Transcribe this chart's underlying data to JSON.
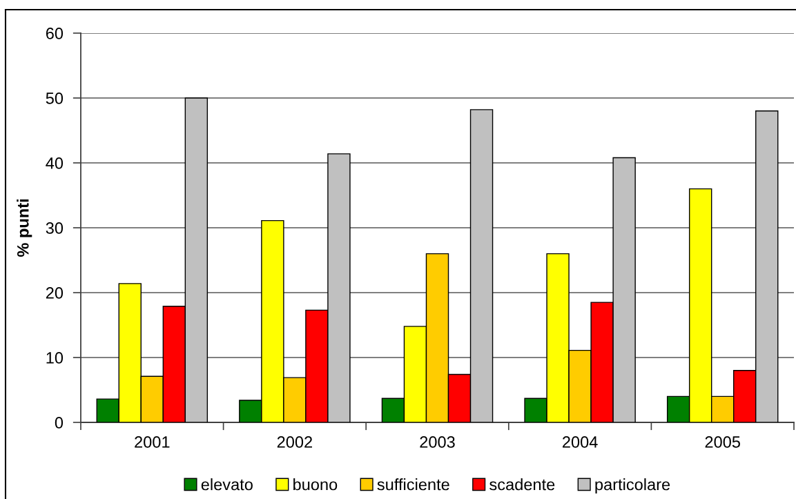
{
  "chart_data": {
    "type": "bar",
    "ylabel": "% punti",
    "categories": [
      "2001",
      "2002",
      "2003",
      "2004",
      "2005"
    ],
    "series": [
      {
        "name": "elevato",
        "color": "#008000",
        "values": [
          3.6,
          3.4,
          3.7,
          3.7,
          4.0
        ]
      },
      {
        "name": "buono",
        "color": "#ffff00",
        "values": [
          21.4,
          31.1,
          14.8,
          26.0,
          36.0
        ]
      },
      {
        "name": "sufficiente",
        "color": "#ffcc00",
        "values": [
          7.1,
          6.9,
          26.0,
          11.1,
          4.0
        ]
      },
      {
        "name": "scadente",
        "color": "#ff0000",
        "values": [
          17.9,
          17.3,
          7.4,
          18.5,
          8.0
        ]
      },
      {
        "name": "particolare",
        "color": "#c0c0c0",
        "values": [
          50.0,
          41.4,
          48.2,
          40.8,
          48.0
        ]
      }
    ],
    "ylim": [
      0,
      60
    ],
    "yticks": [
      0,
      10,
      20,
      30,
      40,
      50,
      60
    ],
    "grid": "y",
    "legend": "bottom"
  }
}
